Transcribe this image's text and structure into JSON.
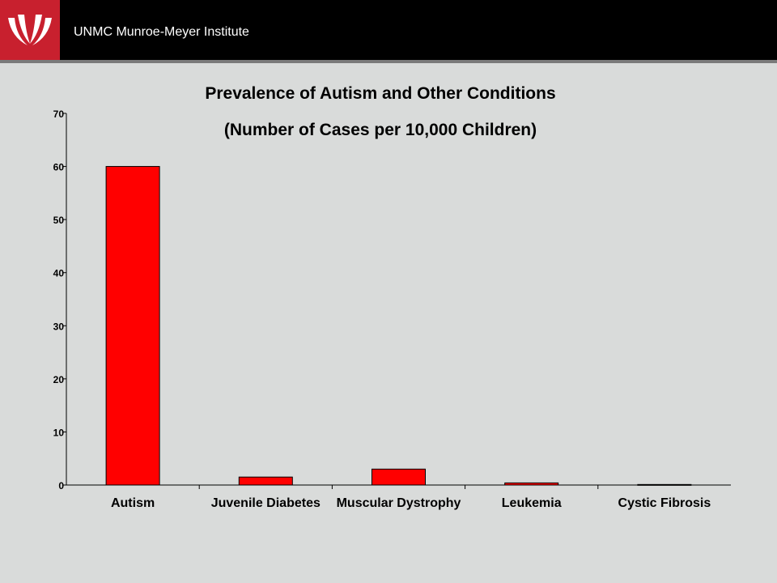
{
  "header": {
    "title": "UNMC Munroe-Meyer Institute",
    "logo_icon": "unmc-swoosh-logo-icon",
    "logo_color": "#c8202e"
  },
  "chart_data": {
    "type": "bar",
    "title": "Prevalence of Autism and Other Conditions",
    "subtitle": "(Number of Cases per 10,000 Children)",
    "categories": [
      "Autism",
      "Juvenile Diabetes",
      "Muscular Dystrophy",
      "Leukemia",
      "Cystic Fibrosis"
    ],
    "values": [
      60,
      1.5,
      3,
      0.4,
      0.1
    ],
    "ylim": [
      0,
      70
    ],
    "yticks": [
      0,
      10,
      20,
      30,
      40,
      50,
      60,
      70
    ],
    "xlabel": "",
    "ylabel": "",
    "grid": false,
    "bar_color": "#ff0000"
  }
}
